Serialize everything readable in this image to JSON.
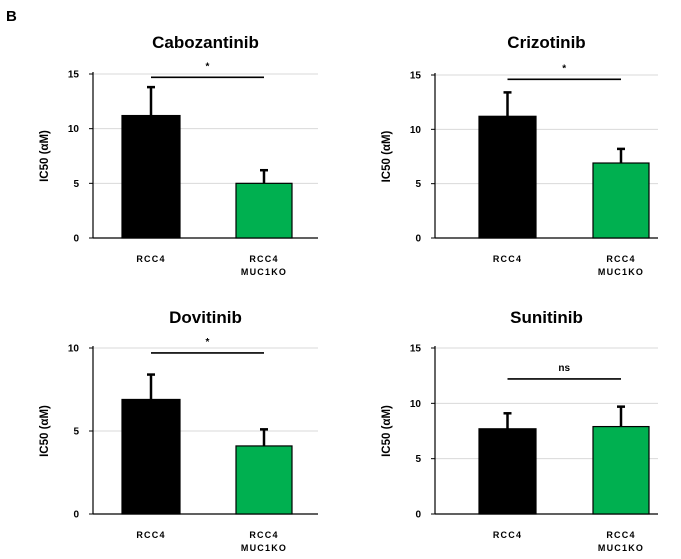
{
  "figure": {
    "panel_label": "B"
  },
  "colors": {
    "RCC4": "#000000",
    "RCC4 MUC1KO": "#00b050",
    "error_bar": "#000000",
    "grid": "#d9d9d9",
    "axis": "#000000"
  },
  "chart_data": [
    {
      "type": "bar",
      "title": "Cabozantinib",
      "ylabel": "IC50 (αM)",
      "ylim": [
        0,
        15
      ],
      "yticks": [
        "0",
        "5",
        "10",
        "15"
      ],
      "grid": true,
      "categories": [
        "RCC4",
        "RCC4 MUC1KO"
      ],
      "category_lines": [
        [
          "RCC4"
        ],
        [
          "RCC4",
          "MUC1KO"
        ]
      ],
      "values": [
        11.2,
        5.0
      ],
      "errors": [
        2.6,
        1.2
      ],
      "significance": {
        "label": "*",
        "y": 14.7
      }
    },
    {
      "type": "bar",
      "title": "Crizotinib",
      "ylabel": "IC50 (αM)",
      "ylim": [
        0,
        15
      ],
      "yticks": [
        "0",
        "5",
        "10",
        "15"
      ],
      "grid": true,
      "categories": [
        "RCC4",
        "RCC4 MUC1KO"
      ],
      "category_lines": [
        [
          "RCC4"
        ],
        [
          "RCC4",
          "MUC1KO"
        ]
      ],
      "values": [
        11.2,
        6.9
      ],
      "errors": [
        2.2,
        1.3
      ],
      "significance": {
        "label": "*",
        "y": 14.6
      }
    },
    {
      "type": "bar",
      "title": "Dovitinib",
      "ylabel": "IC50 (αM)",
      "ylim": [
        0,
        10
      ],
      "yticks": [
        "0",
        "5",
        "10"
      ],
      "grid": true,
      "categories": [
        "RCC4",
        "RCC4 MUC1KO"
      ],
      "category_lines": [
        [
          "RCC4"
        ],
        [
          "RCC4",
          "MUC1KO"
        ]
      ],
      "values": [
        6.9,
        4.1
      ],
      "errors": [
        1.5,
        1.0
      ],
      "significance": {
        "label": "*",
        "y": 9.7
      }
    },
    {
      "type": "bar",
      "title": "Sunitinib",
      "ylabel": "IC50 (αM)",
      "ylim": [
        0,
        15
      ],
      "yticks": [
        "0",
        "5",
        "10",
        "15"
      ],
      "grid": true,
      "categories": [
        "RCC4",
        "RCC4 MUC1KO"
      ],
      "category_lines": [
        [
          "RCC4"
        ],
        [
          "RCC4",
          "MUC1KO"
        ]
      ],
      "values": [
        7.7,
        7.9
      ],
      "errors": [
        1.4,
        1.8
      ],
      "significance": {
        "label": "ns",
        "y": 12.2
      }
    }
  ]
}
